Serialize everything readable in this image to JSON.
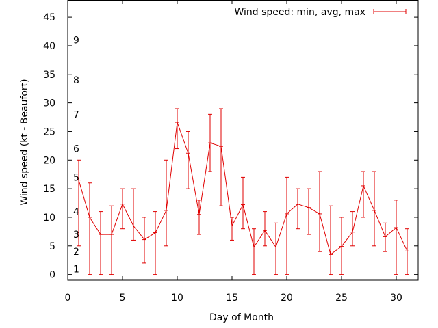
{
  "chart_data": {
    "type": "line",
    "xlabel": "Day of Month",
    "ylabel": "Wind speed (kt - Beaufort)",
    "xlim": [
      0,
      32
    ],
    "ylim": [
      -1,
      48
    ],
    "xticks": [
      0,
      5,
      10,
      15,
      20,
      25,
      30
    ],
    "yticks": [
      0,
      5,
      10,
      15,
      20,
      25,
      30,
      35,
      40,
      45
    ],
    "grid": false,
    "legend": "top-right",
    "color": "#e00000",
    "beaufort_labels": [
      {
        "label": "1",
        "kt": 1
      },
      {
        "label": "2",
        "kt": 4
      },
      {
        "label": "3",
        "kt": 7
      },
      {
        "label": "4",
        "kt": 11
      },
      {
        "label": "5",
        "kt": 17
      },
      {
        "label": "6",
        "kt": 22
      },
      {
        "label": "7",
        "kt": 28
      },
      {
        "label": "8",
        "kt": 34
      },
      {
        "label": "9",
        "kt": 41
      }
    ],
    "series": [
      {
        "name": "Wind speed: min, avg, max",
        "x": [
          1,
          2,
          3,
          4,
          5,
          6,
          7,
          8,
          9,
          10,
          11,
          12,
          13,
          14,
          15,
          16,
          17,
          18,
          19,
          20,
          21,
          22,
          23,
          24,
          25,
          26,
          27,
          28,
          29,
          30,
          31
        ],
        "avg": [
          16.5,
          10,
          7,
          7,
          12.3,
          8.5,
          6.1,
          7.3,
          11.2,
          26.6,
          21.2,
          10.5,
          23,
          22.4,
          8.5,
          12.2,
          4.8,
          7.7,
          4.8,
          10.6,
          12.3,
          11.7,
          10.6,
          3.5,
          4.9,
          7.4,
          15.5,
          11.2,
          6.6,
          8.2,
          4.1
        ],
        "min": [
          5,
          0,
          0,
          0,
          8,
          6,
          2,
          0,
          5,
          22,
          15,
          7,
          18,
          12,
          6,
          8,
          0,
          5,
          0,
          0,
          8,
          7,
          4,
          0,
          0,
          5,
          10,
          5,
          4,
          0,
          0
        ],
        "max": [
          20,
          16,
          11,
          12,
          15,
          15,
          10,
          11,
          20,
          29,
          25,
          13,
          28,
          29,
          10,
          17,
          8,
          11,
          9,
          17,
          15,
          15,
          18,
          12,
          10,
          11,
          18,
          18,
          9,
          13,
          8
        ]
      }
    ]
  }
}
